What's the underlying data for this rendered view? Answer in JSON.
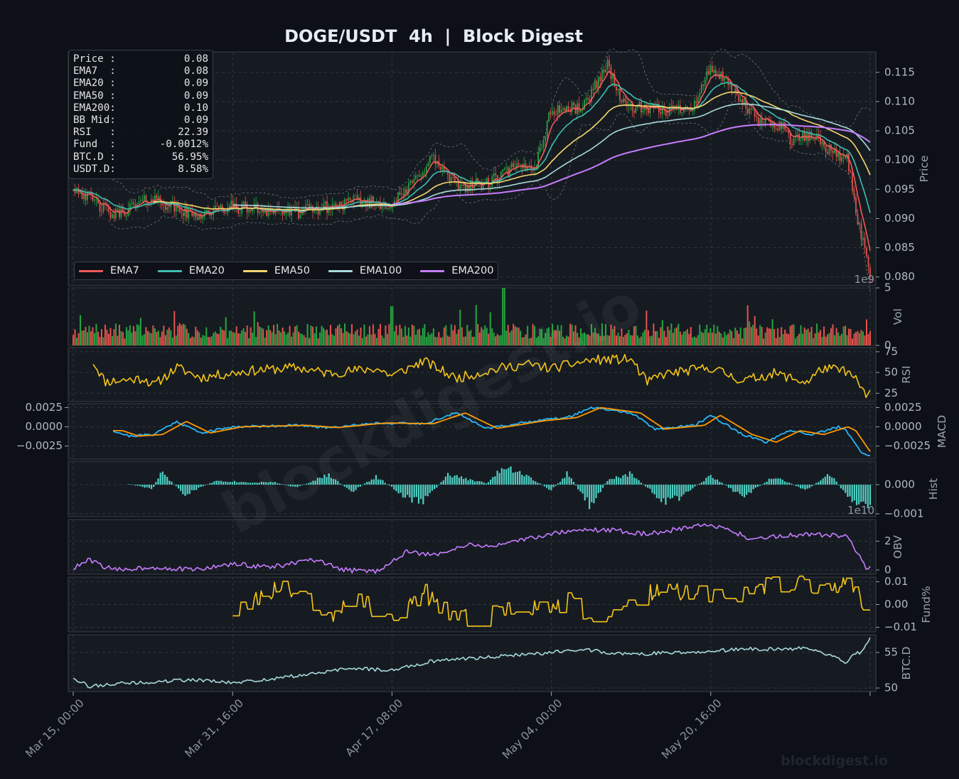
{
  "title": "DOGE/USDT  4h  |  Block Digest",
  "watermark": "blockdigest.io",
  "footer_brand": "blockdigest.io",
  "info_box": [
    {
      "label": "Price :",
      "value": "0.08"
    },
    {
      "label": "EMA7  :",
      "value": "0.08"
    },
    {
      "label": "EMA20 :",
      "value": "0.09"
    },
    {
      "label": "EMA50 :",
      "value": "0.09"
    },
    {
      "label": "EMA200:",
      "value": "0.10"
    },
    {
      "label": "BB Mid:",
      "value": "0.09"
    },
    {
      "label": "RSI   :",
      "value": "22.39"
    },
    {
      "label": "Fund  :",
      "value": "-0.0012%"
    },
    {
      "label": "BTC.D :",
      "value": "56.95%"
    },
    {
      "label": "USDT.D:",
      "value": "8.58%"
    }
  ],
  "legend": [
    {
      "name": "EMA7",
      "color": "#f05a5a"
    },
    {
      "name": "EMA20",
      "color": "#3fbfb2"
    },
    {
      "name": "EMA50",
      "color": "#f5d76e"
    },
    {
      "name": "EMA100",
      "color": "#a8dadc"
    },
    {
      "name": "EMA200",
      "color": "#c77dff"
    }
  ],
  "colors": {
    "background": "#0d1117",
    "panel": "#161b22",
    "grid": "#30363d",
    "up": "#26a641",
    "down": "#e5534b",
    "rsi": "#f5c518",
    "macd": "#29b6f6",
    "signal": "#ff9800",
    "hist": "#4fd1c5",
    "obv": "#c77dff",
    "funding": "#f5c518",
    "btcd": "#a8dadc",
    "text": "#9aa4ae",
    "title": "#e6edf3"
  },
  "chart_data": {
    "type": "line",
    "x_ticks": [
      "Mar 15, 00:00",
      "Mar 31, 16:00",
      "Apr 17, 08:00",
      "May 04, 00:00",
      "May 20, 16:00"
    ],
    "panels": [
      {
        "id": "price",
        "ylabel": "Price",
        "ylim": [
          0.0785,
          0.1185
        ],
        "yticks": [
          "0.080",
          "0.085",
          "0.090",
          "0.095",
          "0.100",
          "0.105",
          "0.110",
          "0.115"
        ],
        "offset_label": "1e9",
        "series": [
          {
            "name": "EMA7",
            "color": "#f05a5a"
          },
          {
            "name": "EMA20",
            "color": "#3fbfb2"
          },
          {
            "name": "EMA50",
            "color": "#f5d76e"
          },
          {
            "name": "EMA100",
            "color": "#a8dadc"
          },
          {
            "name": "EMA200",
            "color": "#c77dff"
          }
        ],
        "anchors": [
          [
            0,
            0.0955
          ],
          [
            0.05,
            0.0905
          ],
          [
            0.1,
            0.0935
          ],
          [
            0.15,
            0.0905
          ],
          [
            0.2,
            0.092
          ],
          [
            0.28,
            0.091
          ],
          [
            0.36,
            0.093
          ],
          [
            0.4,
            0.0925
          ],
          [
            0.42,
            0.095
          ],
          [
            0.45,
            0.1005
          ],
          [
            0.48,
            0.0955
          ],
          [
            0.52,
            0.096
          ],
          [
            0.55,
            0.0985
          ],
          [
            0.58,
            0.099
          ],
          [
            0.6,
            0.1085
          ],
          [
            0.64,
            0.109
          ],
          [
            0.67,
            0.1165
          ],
          [
            0.69,
            0.1095
          ],
          [
            0.72,
            0.1085
          ],
          [
            0.75,
            0.1085
          ],
          [
            0.78,
            0.1095
          ],
          [
            0.8,
            0.116
          ],
          [
            0.83,
            0.1115
          ],
          [
            0.86,
            0.1065
          ],
          [
            0.89,
            0.106
          ],
          [
            0.9,
            0.1035
          ],
          [
            0.93,
            0.104
          ],
          [
            0.96,
            0.1005
          ],
          [
            0.97,
            0.101
          ],
          [
            0.985,
            0.0895
          ],
          [
            1,
            0.0805
          ]
        ]
      },
      {
        "id": "volume",
        "ylabel": "Vol",
        "ylim": [
          0,
          5
        ],
        "yticks": [
          "0",
          "5"
        ]
      },
      {
        "id": "rsi",
        "ylabel": "RSI",
        "ylim": [
          15,
          80
        ],
        "yticks": [
          "25",
          "50",
          "75"
        ],
        "anchors": [
          [
            0.025,
            63
          ],
          [
            0.04,
            39
          ],
          [
            0.09,
            43
          ],
          [
            0.1,
            34
          ],
          [
            0.13,
            56
          ],
          [
            0.16,
            44
          ],
          [
            0.22,
            52
          ],
          [
            0.28,
            56
          ],
          [
            0.32,
            49
          ],
          [
            0.38,
            55
          ],
          [
            0.4,
            46
          ],
          [
            0.44,
            64
          ],
          [
            0.48,
            43
          ],
          [
            0.54,
            56
          ],
          [
            0.57,
            60
          ],
          [
            0.6,
            55
          ],
          [
            0.65,
            65
          ],
          [
            0.7,
            66
          ],
          [
            0.72,
            38
          ],
          [
            0.74,
            48
          ],
          [
            0.8,
            56
          ],
          [
            0.84,
            40
          ],
          [
            0.88,
            49
          ],
          [
            0.92,
            38
          ],
          [
            0.94,
            55
          ],
          [
            0.97,
            52
          ],
          [
            0.985,
            38
          ],
          [
            0.995,
            22
          ],
          [
            1,
            25
          ]
        ]
      },
      {
        "id": "macd",
        "ylabel": "MACD",
        "ylim": [
          -0.0042,
          0.003
        ],
        "yticks": [
          "0.0025",
          "0.0000",
          "−0.0025"
        ],
        "series": [
          {
            "name": "MACD",
            "color": "#29b6f6"
          },
          {
            "name": "Signal",
            "color": "#ff9800"
          }
        ],
        "anchors": [
          [
            0.05,
            -0.0005
          ],
          [
            0.07,
            -0.0012
          ],
          [
            0.1,
            -0.001
          ],
          [
            0.13,
            0.0007
          ],
          [
            0.16,
            -0.0008
          ],
          [
            0.2,
            0.0
          ],
          [
            0.28,
            0.0002
          ],
          [
            0.32,
            -0.0001
          ],
          [
            0.38,
            0.0005
          ],
          [
            0.44,
            0.0004
          ],
          [
            0.48,
            0.0018
          ],
          [
            0.52,
            -0.0002
          ],
          [
            0.58,
            0.0008
          ],
          [
            0.62,
            0.0012
          ],
          [
            0.65,
            0.0025
          ],
          [
            0.7,
            0.0018
          ],
          [
            0.73,
            -0.0003
          ],
          [
            0.78,
            0.0002
          ],
          [
            0.8,
            0.0015
          ],
          [
            0.84,
            -0.001
          ],
          [
            0.87,
            -0.002
          ],
          [
            0.9,
            -0.0005
          ],
          [
            0.93,
            -0.001
          ],
          [
            0.96,
            0.0
          ],
          [
            0.97,
            -0.0005
          ],
          [
            0.99,
            -0.0035
          ],
          [
            1,
            -0.0038
          ]
        ]
      },
      {
        "id": "hist",
        "ylabel": "Hist",
        "ylim": [
          -0.0011,
          0.0008
        ],
        "yticks": [
          "0.000",
          "−0.001"
        ],
        "offset_label": "1e10",
        "anchors": [
          [
            0.07,
            2e-05
          ],
          [
            0.1,
            -0.00015
          ],
          [
            0.11,
            0.00045
          ],
          [
            0.14,
            -0.00035
          ],
          [
            0.18,
            0.00015
          ],
          [
            0.22,
            8e-05
          ],
          [
            0.25,
            0.0001
          ],
          [
            0.28,
            -0.0001
          ],
          [
            0.32,
            0.00035
          ],
          [
            0.35,
            -0.00025
          ],
          [
            0.38,
            0.0003
          ],
          [
            0.42,
            -0.0005
          ],
          [
            0.44,
            -0.0006
          ],
          [
            0.47,
            0.00035
          ],
          [
            0.52,
            5e-05
          ],
          [
            0.54,
            0.0007
          ],
          [
            0.57,
            0.0003
          ],
          [
            0.6,
            -0.0002
          ],
          [
            0.62,
            0.0004
          ],
          [
            0.65,
            -0.0008
          ],
          [
            0.67,
            0.00015
          ],
          [
            0.7,
            0.0004
          ],
          [
            0.74,
            -0.0006
          ],
          [
            0.76,
            -0.0005
          ],
          [
            0.8,
            0.00035
          ],
          [
            0.84,
            -0.00045
          ],
          [
            0.88,
            0.0003
          ],
          [
            0.92,
            -0.0002
          ],
          [
            0.95,
            0.0004
          ],
          [
            0.97,
            -0.0004
          ],
          [
            0.99,
            -0.0007
          ],
          [
            1,
            -0.0007
          ]
        ]
      },
      {
        "id": "obv",
        "ylabel": "OBV",
        "ylim": [
          -0.3,
          3.5
        ],
        "yticks": [
          "0",
          "2"
        ],
        "anchors": [
          [
            0,
            0.1
          ],
          [
            0.02,
            0.7
          ],
          [
            0.05,
            0.0
          ],
          [
            0.1,
            0.2
          ],
          [
            0.15,
            0.0
          ],
          [
            0.2,
            0.4
          ],
          [
            0.25,
            0.2
          ],
          [
            0.3,
            0.7
          ],
          [
            0.34,
            0.0
          ],
          [
            0.38,
            -0.1
          ],
          [
            0.42,
            1.3
          ],
          [
            0.45,
            1.0
          ],
          [
            0.49,
            1.7
          ],
          [
            0.54,
            1.7
          ],
          [
            0.57,
            2.2
          ],
          [
            0.62,
            2.7
          ],
          [
            0.67,
            2.8
          ],
          [
            0.72,
            2.5
          ],
          [
            0.8,
            3.2
          ],
          [
            0.85,
            2.2
          ],
          [
            0.88,
            2.3
          ],
          [
            0.92,
            2.5
          ],
          [
            0.95,
            2.4
          ],
          [
            0.97,
            2.3
          ],
          [
            0.985,
            1.2
          ],
          [
            0.995,
            0.0
          ],
          [
            1,
            0.1
          ]
        ]
      },
      {
        "id": "funding",
        "ylabel": "Fund%",
        "ylim": [
          -0.012,
          0.012
        ],
        "yticks": [
          "0.01",
          "0.00",
          "−0.01"
        ],
        "anchors": [
          [
            0.2,
            -0.003
          ],
          [
            0.24,
            0.005
          ],
          [
            0.28,
            0.0075
          ],
          [
            0.32,
            -0.006
          ],
          [
            0.36,
            0.002
          ],
          [
            0.4,
            -0.008
          ],
          [
            0.44,
            0.0055
          ],
          [
            0.48,
            -0.007
          ],
          [
            0.52,
            -0.003
          ],
          [
            0.56,
            -0.001
          ],
          [
            0.6,
            -0.002
          ],
          [
            0.62,
            0.0015
          ],
          [
            0.66,
            -0.008
          ],
          [
            0.7,
            0.002
          ],
          [
            0.74,
            0.0075
          ],
          [
            0.78,
            0.0045
          ],
          [
            0.82,
            0.003
          ],
          [
            0.86,
            0.0075
          ],
          [
            0.9,
            0.009
          ],
          [
            0.94,
            0.0075
          ],
          [
            0.97,
            0.0095
          ],
          [
            0.99,
            0.0
          ],
          [
            1,
            -0.001
          ]
        ]
      },
      {
        "id": "btcd",
        "ylabel": "BTC.D",
        "ylim": [
          49.5,
          57.5
        ],
        "yticks": [
          "50",
          "55"
        ],
        "anchors": [
          [
            0,
            51.5
          ],
          [
            0.02,
            50.2
          ],
          [
            0.05,
            50.6
          ],
          [
            0.1,
            50.8
          ],
          [
            0.15,
            51.2
          ],
          [
            0.2,
            50.7
          ],
          [
            0.25,
            51.3
          ],
          [
            0.3,
            52.0
          ],
          [
            0.35,
            52.8
          ],
          [
            0.4,
            52.5
          ],
          [
            0.45,
            53.8
          ],
          [
            0.5,
            54.2
          ],
          [
            0.55,
            54.6
          ],
          [
            0.6,
            55.0
          ],
          [
            0.64,
            55.5
          ],
          [
            0.67,
            55.0
          ],
          [
            0.7,
            54.7
          ],
          [
            0.75,
            55.0
          ],
          [
            0.8,
            55.2
          ],
          [
            0.85,
            55.5
          ],
          [
            0.9,
            55.4
          ],
          [
            0.92,
            55.7
          ],
          [
            0.96,
            54.3
          ],
          [
            0.97,
            53.5
          ],
          [
            0.98,
            54.8
          ],
          [
            0.99,
            55.0
          ],
          [
            1,
            57.0
          ]
        ]
      }
    ]
  }
}
